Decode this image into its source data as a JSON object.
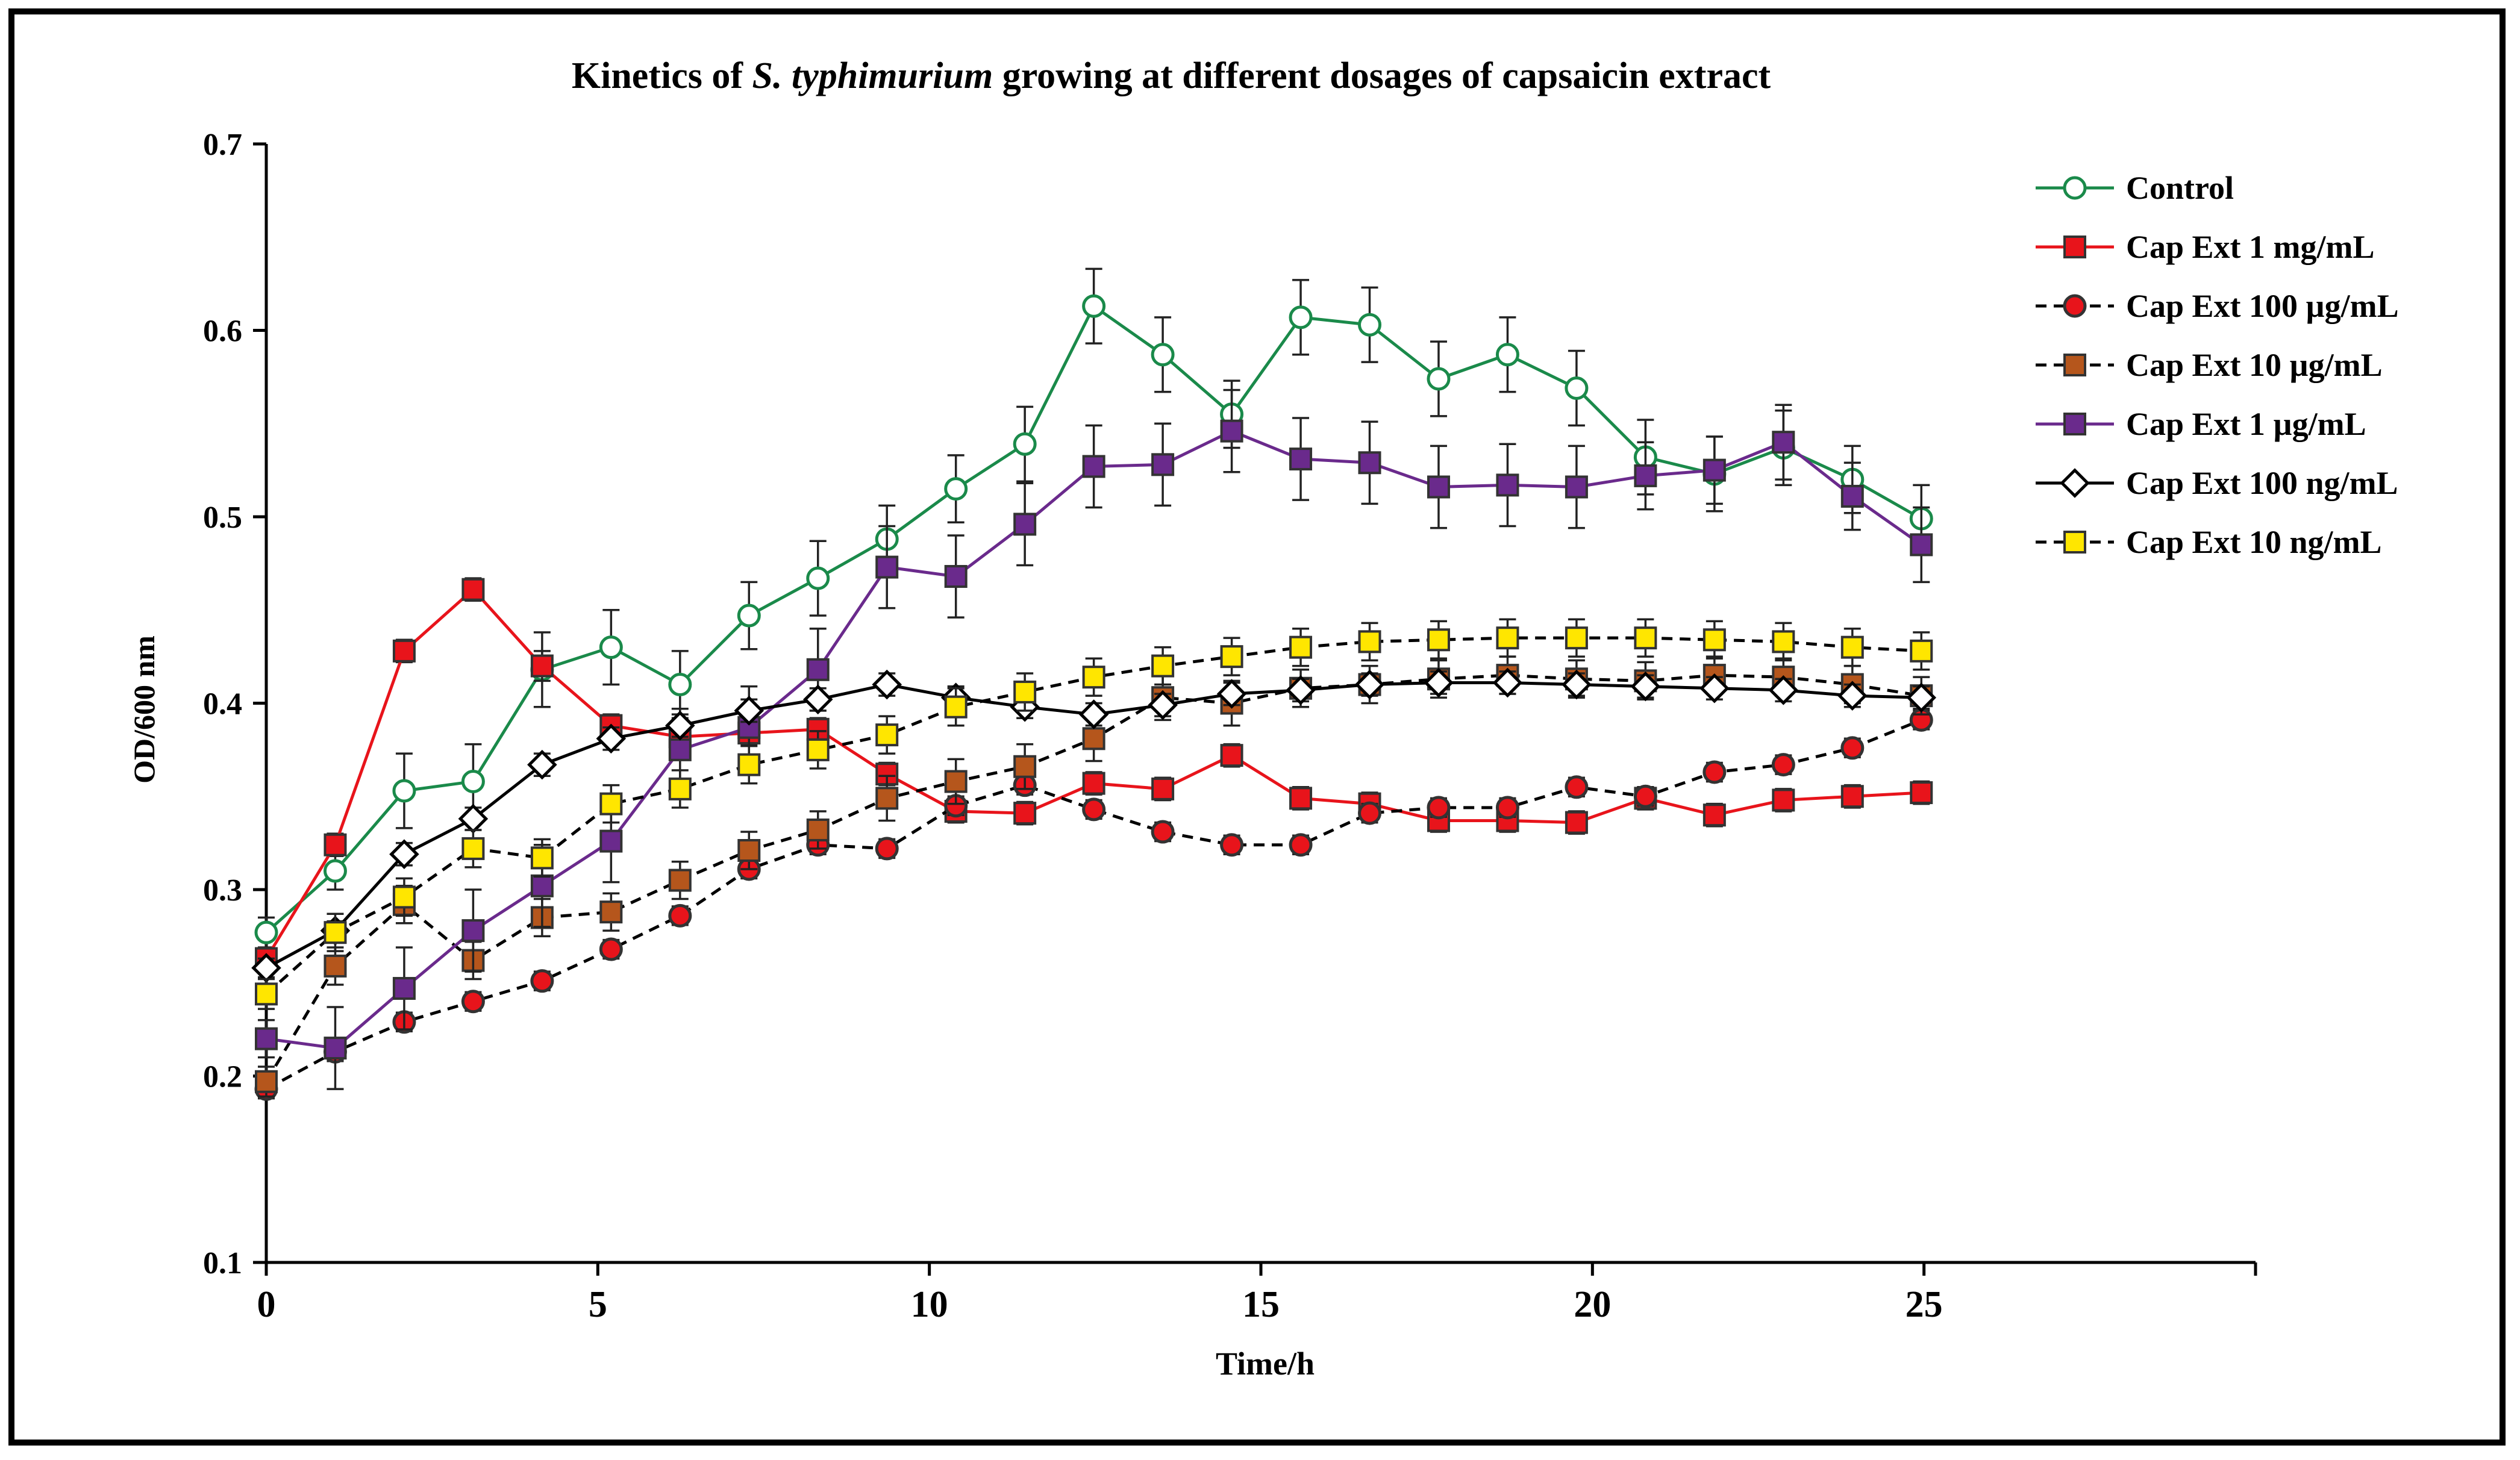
{
  "chart_data": {
    "type": "line",
    "title_parts": {
      "before": "Kinetics of ",
      "italic": "S. typhimurium",
      "after": " growing at different dosages of capsaicin extract"
    },
    "xlabel": "Time/h",
    "ylabel": "OD/600 nm",
    "xlim": [
      0,
      30
    ],
    "ylim": [
      0.1,
      0.7
    ],
    "xticks": [
      0,
      5,
      10,
      15,
      20,
      25
    ],
    "xtick_labels": [
      "0",
      "5",
      "10",
      "15",
      "20",
      "25"
    ],
    "yticks": [
      0.1,
      0.2,
      0.3,
      0.4,
      0.5,
      0.6,
      0.7
    ],
    "ytick_labels": [
      "0.1",
      "0.2",
      "0.3",
      "0.4",
      "0.5",
      "0.6",
      "0.7"
    ],
    "grid": false,
    "legend_position": "right",
    "x": [
      0,
      1.04,
      2.08,
      3.12,
      4.16,
      5.2,
      6.24,
      7.28,
      8.32,
      9.36,
      10.4,
      11.44,
      12.48,
      13.52,
      14.56,
      15.6,
      16.64,
      17.68,
      18.72,
      19.76,
      20.8,
      21.84,
      22.88,
      23.92,
      24.96
    ],
    "series": [
      {
        "name": "Control",
        "color": "#1a8a4a",
        "marker": "circle",
        "marker_fill": "#ffffff",
        "line_style": "solid",
        "values": [
          0.277,
          0.31,
          0.353,
          0.358,
          0.418,
          0.43,
          0.41,
          0.447,
          0.467,
          0.488,
          0.515,
          0.539,
          0.613,
          0.587,
          0.555,
          0.607,
          0.603,
          0.574,
          0.587,
          0.569,
          0.532,
          0.523,
          0.537,
          0.52,
          0.499
        ],
        "error": [
          0.008,
          0.01,
          0.02,
          0.02,
          0.02,
          0.02,
          0.018,
          0.018,
          0.02,
          0.018,
          0.018,
          0.02,
          0.02,
          0.02,
          0.018,
          0.02,
          0.02,
          0.02,
          0.02,
          0.02,
          0.02,
          0.02,
          0.02,
          0.018,
          0.018
        ]
      },
      {
        "name": "Cap Ext 1 mg/mL",
        "color": "#e8141b",
        "marker": "square",
        "marker_fill": "#e8141b",
        "line_style": "solid",
        "values": [
          0.263,
          0.324,
          0.428,
          0.461,
          0.42,
          0.388,
          0.382,
          0.384,
          0.386,
          0.362,
          0.342,
          0.341,
          0.357,
          0.354,
          0.372,
          0.349,
          0.346,
          0.337,
          0.337,
          0.336,
          0.349,
          0.34,
          0.348,
          0.35,
          0.352
        ],
        "error": [
          0.005,
          0.006,
          0.006,
          0.006,
          0.008,
          0.006,
          0.006,
          0.006,
          0.006,
          0.006,
          0.006,
          0.006,
          0.006,
          0.006,
          0.006,
          0.006,
          0.006,
          0.006,
          0.006,
          0.006,
          0.006,
          0.006,
          0.006,
          0.006,
          0.006
        ]
      },
      {
        "name": "Cap Ext 100 µg/mL",
        "color": "#e8141b",
        "marker": "circle",
        "marker_fill": "#e8141b",
        "line_style": "dashed",
        "values": [
          0.193,
          0.213,
          0.229,
          0.24,
          0.251,
          0.268,
          0.286,
          0.311,
          0.324,
          0.322,
          0.345,
          0.356,
          0.343,
          0.331,
          0.324,
          0.324,
          0.341,
          0.344,
          0.344,
          0.355,
          0.35,
          0.363,
          0.367,
          0.376,
          0.391
        ],
        "error": [
          0.005,
          0.005,
          0.005,
          0.005,
          0.005,
          0.005,
          0.005,
          0.005,
          0.005,
          0.005,
          0.005,
          0.005,
          0.005,
          0.005,
          0.005,
          0.005,
          0.005,
          0.005,
          0.005,
          0.005,
          0.005,
          0.005,
          0.005,
          0.005,
          0.005
        ]
      },
      {
        "name": "Cap Ext 10 µg/mL",
        "color": "#b5561c",
        "marker": "square",
        "marker_fill": "#b5561c",
        "line_style": "dashed",
        "values": [
          0.197,
          0.259,
          0.292,
          0.262,
          0.285,
          0.288,
          0.305,
          0.321,
          0.332,
          0.349,
          0.358,
          0.366,
          0.381,
          0.403,
          0.4,
          0.408,
          0.41,
          0.413,
          0.415,
          0.413,
          0.412,
          0.415,
          0.414,
          0.41,
          0.404
        ],
        "error": [
          0.008,
          0.01,
          0.01,
          0.01,
          0.01,
          0.01,
          0.01,
          0.01,
          0.01,
          0.012,
          0.012,
          0.012,
          0.012,
          0.012,
          0.012,
          0.01,
          0.01,
          0.01,
          0.01,
          0.01,
          0.01,
          0.01,
          0.01,
          0.01,
          0.01
        ]
      },
      {
        "name": "Cap Ext 1 µg/mL",
        "color": "#6a2a8c",
        "marker": "square",
        "marker_fill": "#6a2a8c",
        "line_style": "solid",
        "values": [
          0.22,
          0.215,
          0.247,
          0.278,
          0.302,
          0.326,
          0.375,
          0.387,
          0.418,
          0.473,
          0.468,
          0.496,
          0.527,
          0.528,
          0.546,
          0.531,
          0.529,
          0.516,
          0.517,
          0.516,
          0.522,
          0.525,
          0.54,
          0.511,
          0.485
        ],
        "error": [
          0.01,
          0.022,
          0.022,
          0.022,
          0.022,
          0.022,
          0.022,
          0.022,
          0.022,
          0.022,
          0.022,
          0.022,
          0.022,
          0.022,
          0.022,
          0.022,
          0.022,
          0.022,
          0.022,
          0.022,
          0.018,
          0.018,
          0.02,
          0.018,
          0.02
        ]
      },
      {
        "name": "Cap Ext 100 ng/mL",
        "color": "#000000",
        "marker": "diamond",
        "marker_fill": "#ffffff",
        "line_style": "solid",
        "values": [
          0.258,
          0.278,
          0.319,
          0.338,
          0.367,
          0.381,
          0.388,
          0.396,
          0.402,
          0.41,
          0.403,
          0.398,
          0.394,
          0.399,
          0.405,
          0.407,
          0.41,
          0.411,
          0.411,
          0.41,
          0.409,
          0.408,
          0.407,
          0.404,
          0.403
        ],
        "error": [
          0.005,
          0.005,
          0.006,
          0.006,
          0.006,
          0.006,
          0.006,
          0.006,
          0.006,
          0.006,
          0.006,
          0.006,
          0.006,
          0.006,
          0.006,
          0.006,
          0.006,
          0.006,
          0.006,
          0.006,
          0.006,
          0.006,
          0.006,
          0.006,
          0.006
        ]
      },
      {
        "name": "Cap Ext 10 ng/mL",
        "color": "#ffe600",
        "marker": "square",
        "marker_fill": "#ffe600",
        "line_style": "dashed",
        "values": [
          0.244,
          0.277,
          0.296,
          0.322,
          0.317,
          0.346,
          0.354,
          0.367,
          0.375,
          0.383,
          0.398,
          0.406,
          0.414,
          0.42,
          0.425,
          0.43,
          0.433,
          0.434,
          0.435,
          0.435,
          0.435,
          0.434,
          0.433,
          0.43,
          0.428
        ],
        "error": [
          0.008,
          0.01,
          0.01,
          0.01,
          0.01,
          0.01,
          0.01,
          0.01,
          0.01,
          0.01,
          0.01,
          0.01,
          0.01,
          0.01,
          0.01,
          0.01,
          0.01,
          0.01,
          0.01,
          0.01,
          0.01,
          0.01,
          0.01,
          0.01,
          0.01
        ]
      }
    ]
  }
}
